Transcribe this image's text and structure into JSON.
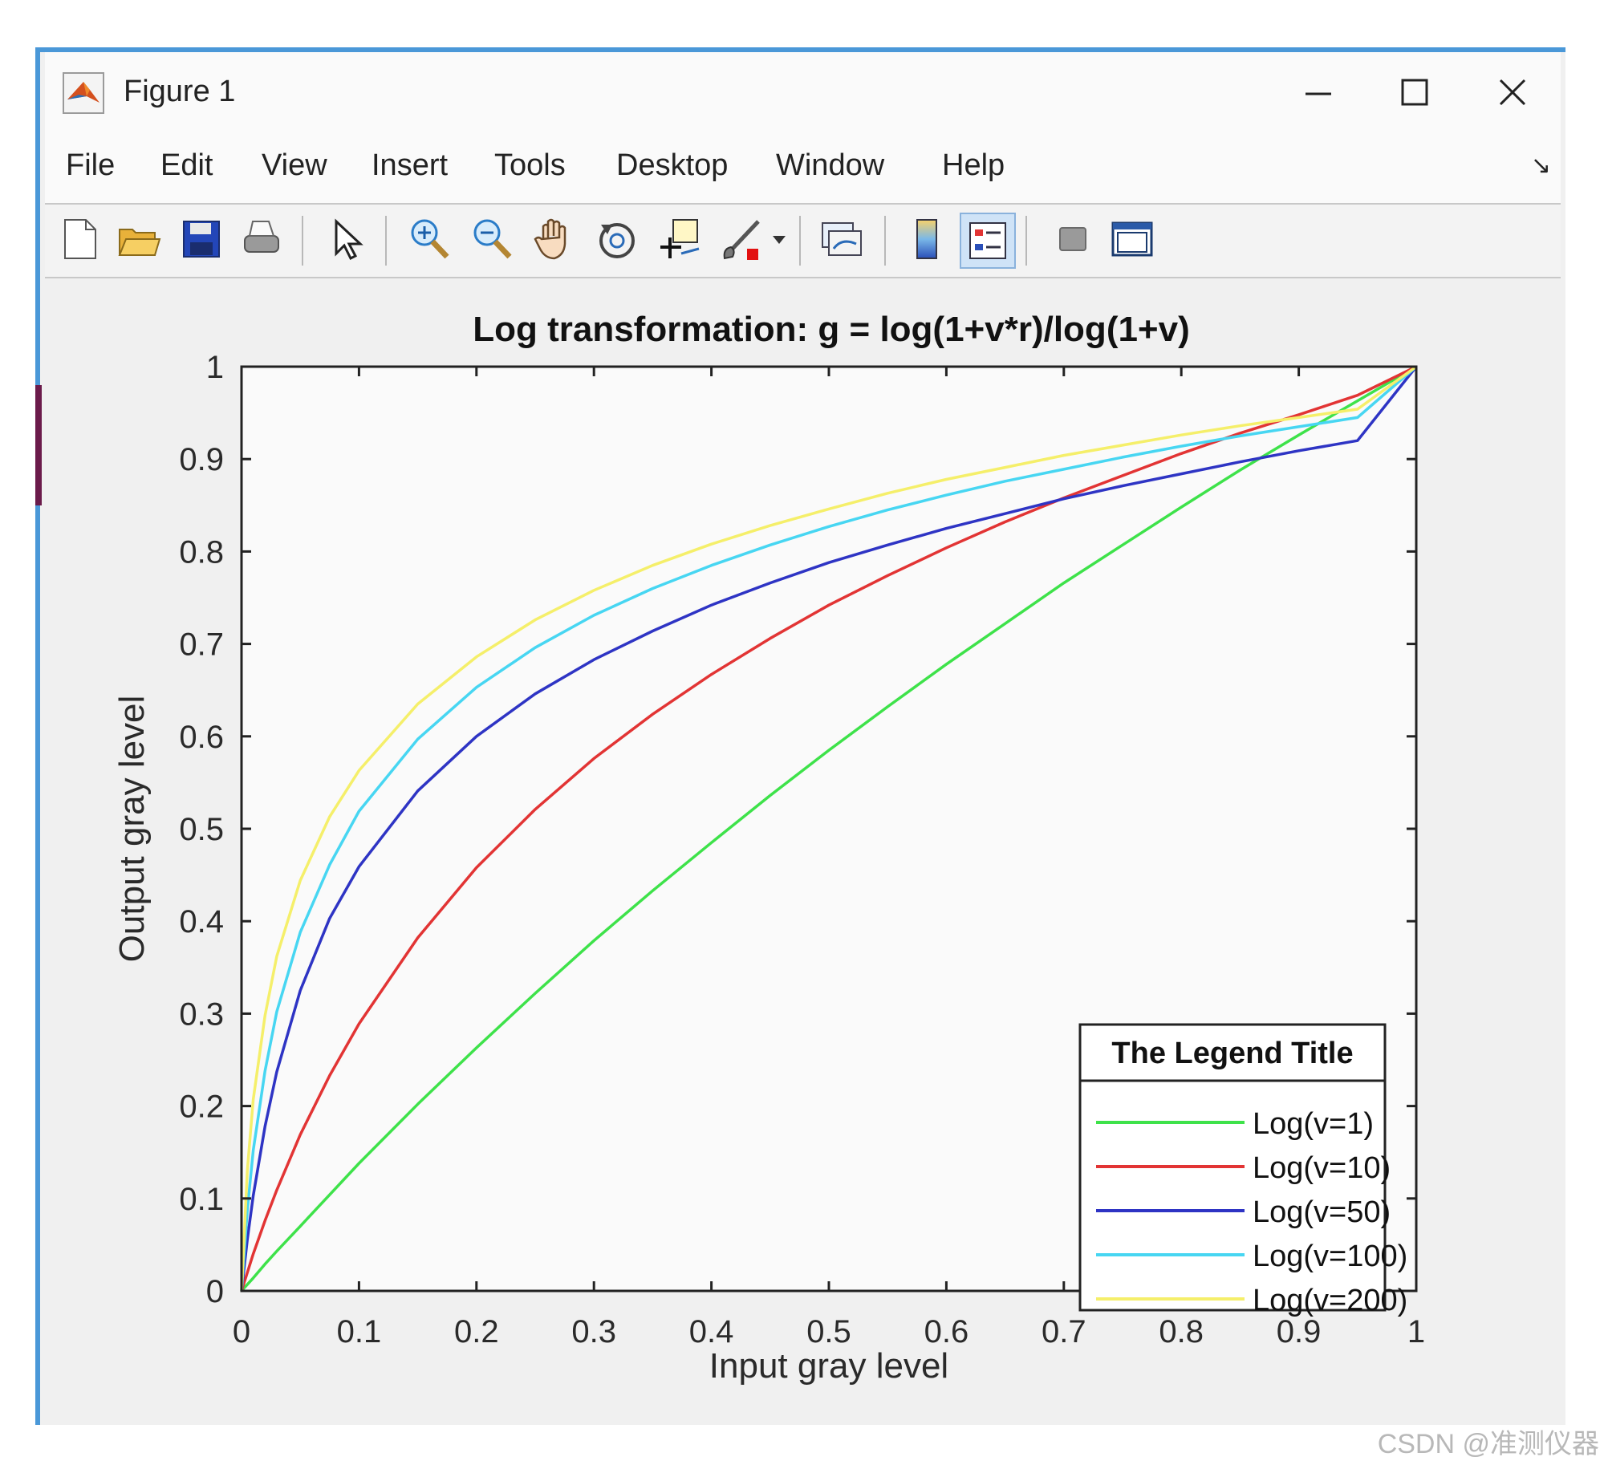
{
  "window": {
    "title": "Figure 1",
    "minimize_glyph": "—",
    "maximize_glyph": "☐",
    "close_glyph": "✕"
  },
  "menu": {
    "items": [
      "File",
      "Edit",
      "View",
      "Insert",
      "Tools",
      "Desktop",
      "Window",
      "Help"
    ],
    "expand_glyph": "↘"
  },
  "toolbar": {
    "icons": [
      "new-figure-icon",
      "open-file-icon",
      "save-icon",
      "print-icon",
      "pointer-icon",
      "zoom-in-icon",
      "zoom-out-icon",
      "pan-hand-icon",
      "rotate-3d-icon",
      "data-cursor-icon",
      "brush-icon",
      "brush-dropdown-icon",
      "link-plot-icon",
      "colorbar-icon",
      "legend-icon",
      "hide-plot-tools-icon",
      "show-plot-tools-icon"
    ]
  },
  "chart_data": {
    "type": "line",
    "title": "Log transformation: g = log(1+v*r)/log(1+v)",
    "xlabel": "Input gray level",
    "ylabel": "Output gray level",
    "xlim": [
      0,
      1
    ],
    "ylim": [
      0,
      1
    ],
    "xticks": [
      "0",
      "0.1",
      "0.2",
      "0.3",
      "0.4",
      "0.5",
      "0.6",
      "0.7",
      "0.8",
      "0.9",
      "1"
    ],
    "yticks": [
      "0",
      "0.1",
      "0.2",
      "0.3",
      "0.4",
      "0.5",
      "0.6",
      "0.7",
      "0.8",
      "0.9",
      "1"
    ],
    "grid": false,
    "legend": {
      "title": "The Legend Title",
      "position": "bottom-right"
    },
    "x": [
      0,
      0.005,
      0.01,
      0.02,
      0.03,
      0.05,
      0.075,
      0.1,
      0.15,
      0.2,
      0.25,
      0.3,
      0.35,
      0.4,
      0.45,
      0.5,
      0.55,
      0.6,
      0.65,
      0.7,
      0.75,
      0.8,
      0.85,
      0.9,
      0.95,
      1
    ],
    "series": [
      {
        "name": "Log(v=1)",
        "color": "#3ee24a",
        "y": [
          0,
          0.007,
          0.014,
          0.029,
          0.043,
          0.07,
          0.104,
          0.138,
          0.202,
          0.263,
          0.322,
          0.379,
          0.433,
          0.485,
          0.536,
          0.585,
          0.632,
          0.678,
          0.722,
          0.766,
          0.807,
          0.848,
          0.888,
          0.926,
          0.963,
          1
        ]
      },
      {
        "name": "Log(v=10)",
        "color": "#e23434",
        "y": [
          0,
          0.02,
          0.04,
          0.076,
          0.109,
          0.169,
          0.233,
          0.289,
          0.382,
          0.458,
          0.521,
          0.576,
          0.624,
          0.667,
          0.706,
          0.742,
          0.774,
          0.804,
          0.832,
          0.858,
          0.882,
          0.906,
          0.928,
          0.948,
          0.969,
          1
        ]
      },
      {
        "name": "Log(v=50)",
        "color": "#2e34c4",
        "y": [
          0,
          0.056,
          0.103,
          0.178,
          0.237,
          0.325,
          0.403,
          0.459,
          0.541,
          0.6,
          0.646,
          0.683,
          0.714,
          0.742,
          0.766,
          0.788,
          0.807,
          0.825,
          0.841,
          0.857,
          0.871,
          0.884,
          0.897,
          0.909,
          0.92,
          1
        ]
      },
      {
        "name": "Log(v=100)",
        "color": "#47d6f2",
        "y": [
          0,
          0.088,
          0.152,
          0.238,
          0.302,
          0.388,
          0.461,
          0.519,
          0.597,
          0.653,
          0.696,
          0.731,
          0.76,
          0.785,
          0.807,
          0.827,
          0.845,
          0.861,
          0.876,
          0.889,
          0.902,
          0.914,
          0.925,
          0.935,
          0.945,
          1
        ]
      },
      {
        "name": "Log(v=200)",
        "color": "#f5ef6a",
        "y": [
          0,
          0.131,
          0.207,
          0.298,
          0.362,
          0.444,
          0.513,
          0.563,
          0.635,
          0.686,
          0.726,
          0.758,
          0.785,
          0.808,
          0.828,
          0.846,
          0.863,
          0.878,
          0.891,
          0.904,
          0.915,
          0.926,
          0.936,
          0.945,
          0.954,
          1
        ]
      }
    ]
  },
  "watermark": "CSDN @准测仪器"
}
